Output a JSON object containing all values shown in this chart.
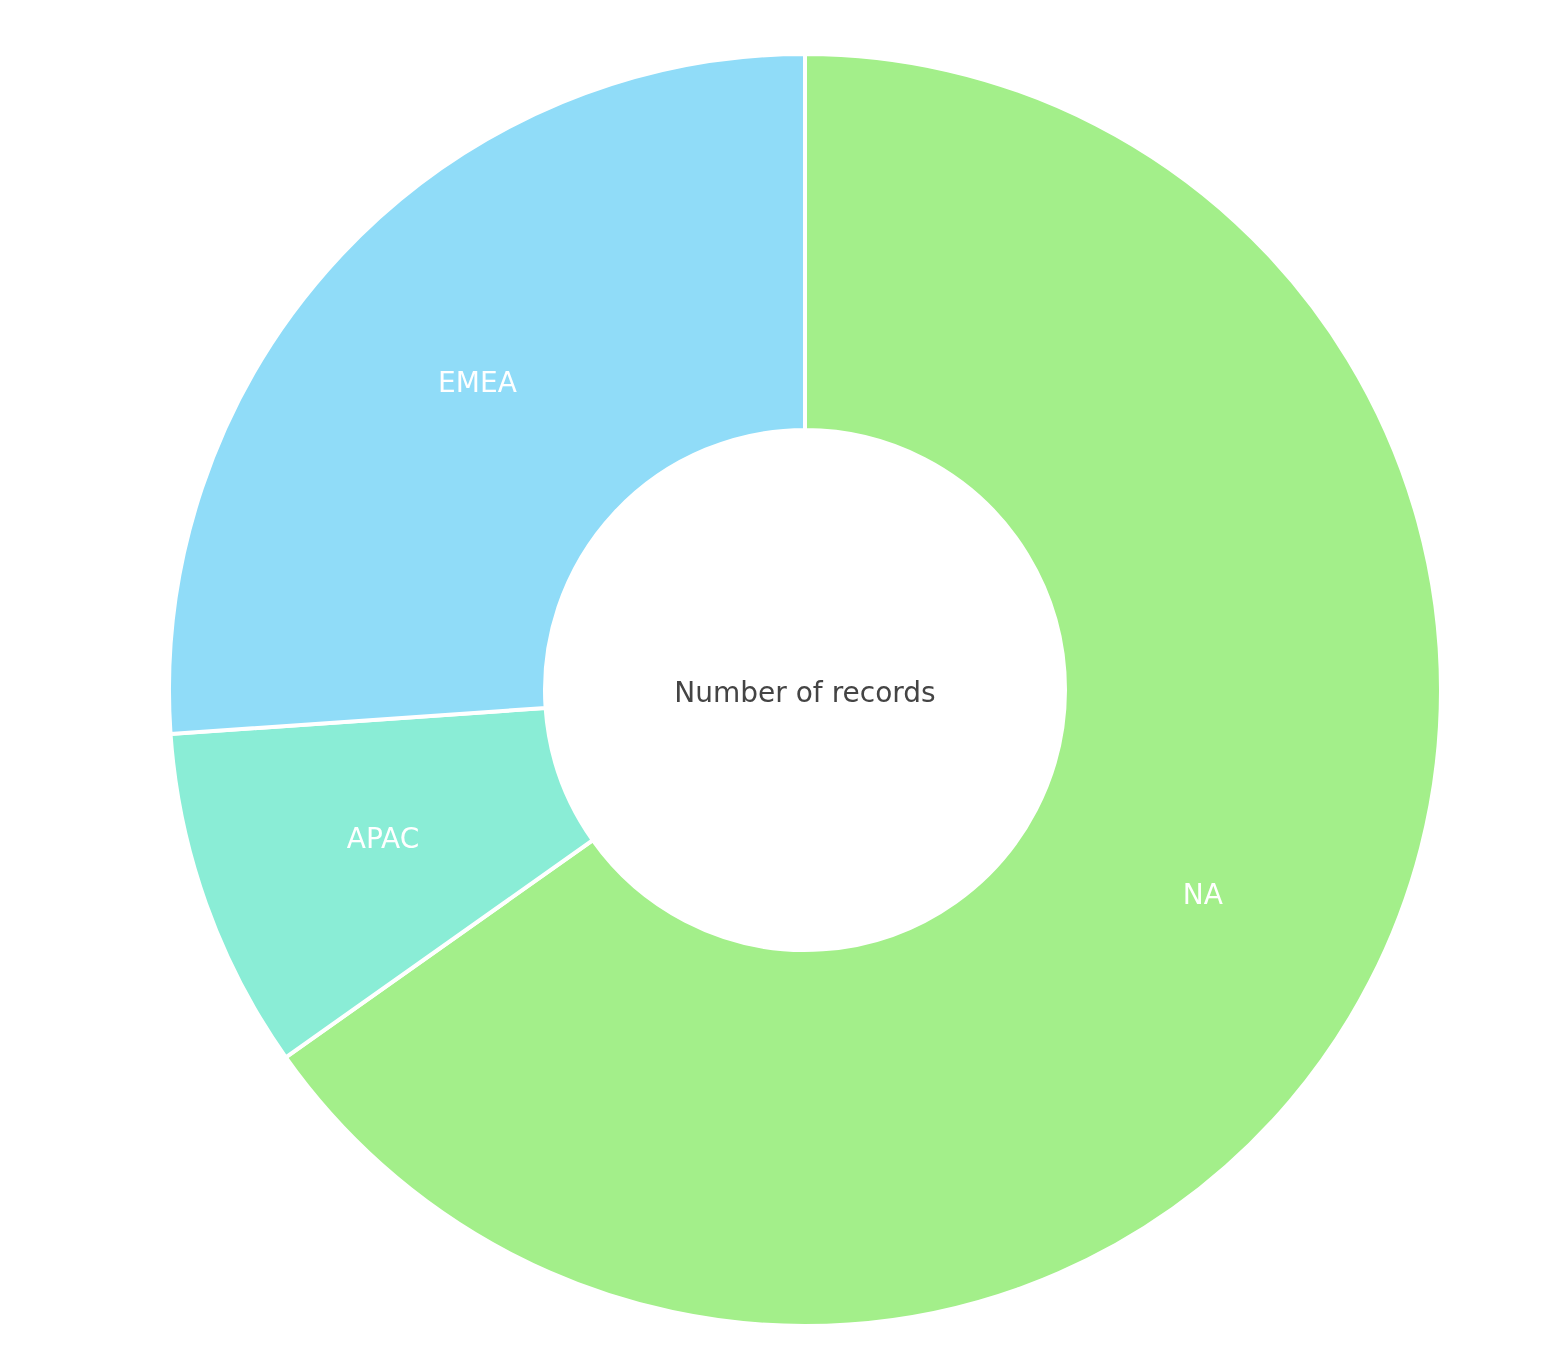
{
  "chart_data": {
    "type": "donut",
    "title": "Number of records",
    "categories": [
      "NA",
      "APAC",
      "EMEA"
    ],
    "values": [
      65.2,
      8.7,
      26.1
    ],
    "colors": [
      "#a3ef8a",
      "#8aedd6",
      "#90dcf8"
    ]
  }
}
